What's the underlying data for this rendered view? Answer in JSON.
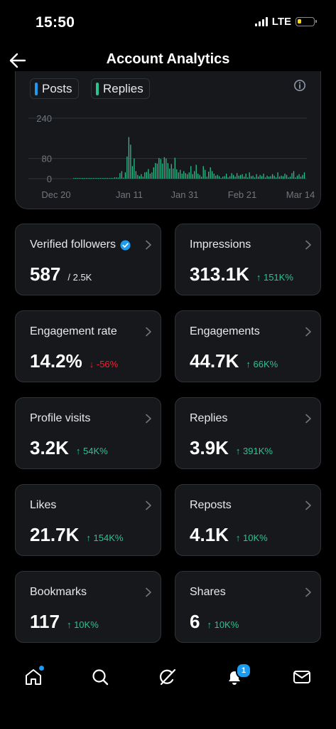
{
  "status_bar": {
    "time": "15:50",
    "network": "LTE",
    "battery_color": "#ffd60a",
    "battery_level": 0.25
  },
  "header": {
    "title": "Account Analytics",
    "back_icon": "arrow-left-icon"
  },
  "chart": {
    "legend": [
      {
        "label": "Posts",
        "color": "#1d9bf0"
      },
      {
        "label": "Replies",
        "color": "#2ac48d"
      }
    ]
  },
  "chart_data": {
    "type": "bar",
    "series": [
      {
        "name": "Replies",
        "color": "#2ac48d",
        "values": [
          0,
          0,
          0,
          0,
          0,
          0,
          1,
          0,
          0,
          0,
          0,
          0,
          0,
          0,
          2,
          1,
          2,
          0,
          3,
          0,
          2,
          3,
          1,
          5,
          5,
          4,
          22,
          30,
          4,
          25,
          88,
          165,
          135,
          50,
          80,
          30,
          15,
          10,
          18,
          8,
          25,
          27,
          38,
          20,
          25,
          45,
          62,
          60,
          82,
          78,
          60,
          85,
          80,
          62,
          40,
          58,
          40,
          83,
          37,
          25,
          35,
          20,
          30,
          22,
          18,
          25,
          50,
          18,
          30,
          55,
          20,
          15,
          8,
          50,
          35,
          8,
          28,
          45,
          30,
          20,
          12,
          15,
          10,
          3,
          8,
          10,
          20,
          5,
          10,
          22,
          15,
          8,
          22,
          12,
          15,
          18,
          8,
          20,
          5,
          25,
          10,
          12,
          5,
          18,
          8,
          15,
          10,
          20,
          5,
          12,
          8,
          10,
          18,
          12,
          5,
          25,
          8,
          12,
          10,
          20,
          15,
          5,
          8,
          22,
          30,
          5,
          12,
          18,
          8,
          15,
          25
        ]
      }
    ],
    "x_tick_labels": [
      "Dec 20",
      "Jan 11",
      "Jan 31",
      "Feb 21",
      "Mar 14"
    ],
    "y_tick_labels": [
      "240",
      "80",
      "0"
    ],
    "ylim": [
      0,
      240
    ],
    "grid": true
  },
  "metrics": [
    {
      "label": "Verified followers",
      "value": "587",
      "sub": "/ 2.5K",
      "change": "",
      "direction": "",
      "verified": true
    },
    {
      "label": "Impressions",
      "value": "313.1K",
      "sub": "",
      "change": "151K%",
      "direction": "up"
    },
    {
      "label": "Engagement rate",
      "value": "14.2%",
      "sub": "",
      "change": "-56%",
      "direction": "down"
    },
    {
      "label": "Engagements",
      "value": "44.7K",
      "sub": "",
      "change": "66K%",
      "direction": "up"
    },
    {
      "label": "Profile visits",
      "value": "3.2K",
      "sub": "",
      "change": "54K%",
      "direction": "up"
    },
    {
      "label": "Replies",
      "value": "3.9K",
      "sub": "",
      "change": "391K%",
      "direction": "up"
    },
    {
      "label": "Likes",
      "value": "21.7K",
      "sub": "",
      "change": "154K%",
      "direction": "up"
    },
    {
      "label": "Reposts",
      "value": "4.1K",
      "sub": "",
      "change": "10K%",
      "direction": "up"
    },
    {
      "label": "Bookmarks",
      "value": "117",
      "sub": "",
      "change": "10K%",
      "direction": "up"
    },
    {
      "label": "Shares",
      "value": "6",
      "sub": "",
      "change": "10K%",
      "direction": "up"
    }
  ],
  "bottom_nav": {
    "items": [
      "home-icon",
      "search-icon",
      "grok-icon",
      "notifications-icon",
      "messages-icon"
    ],
    "notification_badge": "1",
    "accent": "#1d9bf0"
  }
}
